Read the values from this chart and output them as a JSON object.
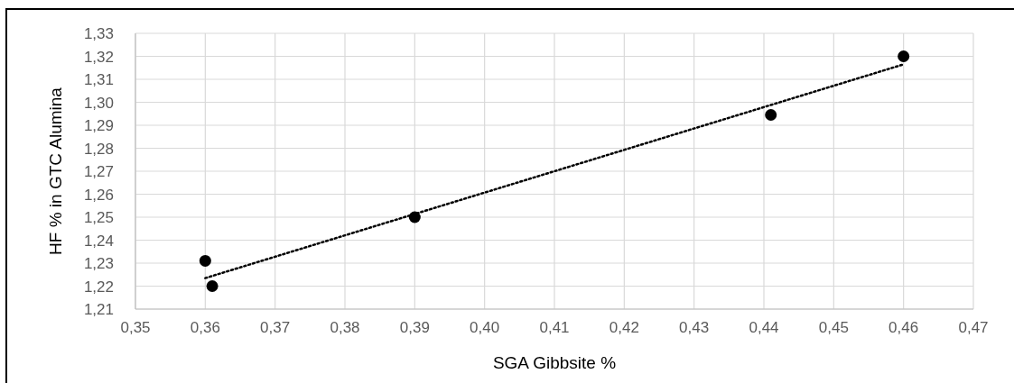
{
  "chart_data": {
    "type": "scatter",
    "xlabel": "SGA Gibbsite %",
    "ylabel": "HF % in GTC Alumina",
    "grid": true,
    "x": [
      0.36,
      0.361,
      0.39,
      0.441,
      0.46
    ],
    "series": [
      {
        "marker": "circle",
        "color": "#000000",
        "values": [
          1.231,
          1.22,
          1.25,
          1.2945,
          1.32
        ]
      },
      {
        "type": "line",
        "color": "#000000",
        "line_style": "dotted",
        "marker": "none",
        "x": [
          0.36,
          0.46
        ],
        "values": [
          1.2235,
          1.3165
        ]
      }
    ],
    "xlim": [
      0.35,
      0.47
    ],
    "ylim": [
      1.21,
      1.33
    ],
    "xticks": [
      {
        "value": 0.35,
        "label": "0,35"
      },
      {
        "value": 0.36,
        "label": "0,36"
      },
      {
        "value": 0.37,
        "label": "0,37"
      },
      {
        "value": 0.38,
        "label": "0,38"
      },
      {
        "value": 0.39,
        "label": "0,39"
      },
      {
        "value": 0.4,
        "label": "0,40"
      },
      {
        "value": 0.41,
        "label": "0,41"
      },
      {
        "value": 0.42,
        "label": "0,42"
      },
      {
        "value": 0.43,
        "label": "0,43"
      },
      {
        "value": 0.44,
        "label": "0,44"
      },
      {
        "value": 0.45,
        "label": "0,45"
      },
      {
        "value": 0.46,
        "label": "0,46"
      },
      {
        "value": 0.47,
        "label": "0,47"
      }
    ],
    "yticks": [
      {
        "value": 1.21,
        "label": "1,21"
      },
      {
        "value": 1.22,
        "label": "1,22"
      },
      {
        "value": 1.23,
        "label": "1,23"
      },
      {
        "value": 1.24,
        "label": "1,24"
      },
      {
        "value": 1.25,
        "label": "1,25"
      },
      {
        "value": 1.26,
        "label": "1,26"
      },
      {
        "value": 1.27,
        "label": "1,27"
      },
      {
        "value": 1.28,
        "label": "1,28"
      },
      {
        "value": 1.29,
        "label": "1,29"
      },
      {
        "value": 1.3,
        "label": "1,30"
      },
      {
        "value": 1.31,
        "label": "1,31"
      },
      {
        "value": 1.32,
        "label": "1,32"
      },
      {
        "value": 1.33,
        "label": "1,33"
      }
    ]
  }
}
